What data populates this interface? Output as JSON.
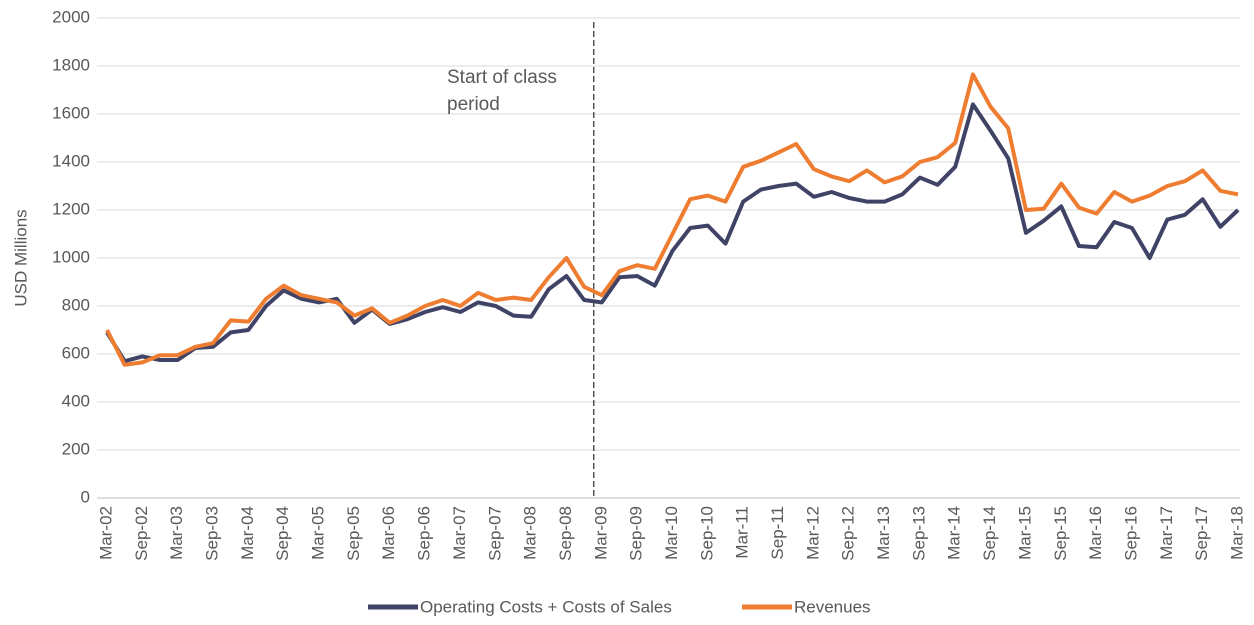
{
  "chart_data": {
    "type": "line",
    "y_label": "USD Millions",
    "annotation": [
      "Start of class",
      "period"
    ],
    "annotation_at": "Mar-09",
    "categories": [
      "Mar-02",
      null,
      "Sep-02",
      null,
      "Mar-03",
      null,
      "Sep-03",
      null,
      "Mar-04",
      null,
      "Sep-04",
      null,
      "Mar-05",
      null,
      "Sep-05",
      null,
      "Mar-06",
      null,
      "Sep-06",
      null,
      "Mar-07",
      null,
      "Sep-07",
      null,
      "Mar-08",
      null,
      "Sep-08",
      null,
      "Mar-09",
      null,
      "Sep-09",
      null,
      "Mar-10",
      null,
      "Sep-10",
      null,
      "Mar-11",
      null,
      "Sep-11",
      null,
      "Mar-12",
      null,
      "Sep-12",
      null,
      "Mar-13",
      null,
      "Sep-13",
      null,
      "Mar-14",
      null,
      "Sep-14",
      null,
      "Mar-15",
      null,
      "Sep-15",
      null,
      "Mar-16",
      null,
      "Sep-16",
      null,
      "Mar-17",
      null,
      "Sep-17",
      null,
      "Mar-18"
    ],
    "series": [
      {
        "name": "Operating Costs + Costs of Sales",
        "color": "#3f4366",
        "values": [
          690,
          570,
          590,
          575,
          575,
          625,
          630,
          690,
          700,
          800,
          865,
          830,
          815,
          830,
          730,
          785,
          725,
          745,
          775,
          795,
          775,
          815,
          800,
          760,
          755,
          870,
          925,
          825,
          815,
          920,
          925,
          885,
          1030,
          1125,
          1135,
          1060,
          1235,
          1285,
          1300,
          1310,
          1255,
          1275,
          1250,
          1235,
          1235,
          1265,
          1335,
          1305,
          1380,
          1640,
          1530,
          1415,
          1105,
          1155,
          1215,
          1050,
          1045,
          1150,
          1125,
          1000,
          1160,
          1180,
          1245,
          1130,
          1200
        ]
      },
      {
        "name": "Revenues",
        "color": "#ee7d31",
        "values": [
          700,
          555,
          565,
          595,
          595,
          630,
          645,
          740,
          735,
          830,
          885,
          845,
          830,
          815,
          760,
          790,
          730,
          760,
          800,
          825,
          800,
          855,
          825,
          835,
          825,
          920,
          1000,
          880,
          845,
          945,
          970,
          955,
          1100,
          1245,
          1260,
          1235,
          1380,
          1405,
          1440,
          1475,
          1370,
          1340,
          1320,
          1365,
          1315,
          1340,
          1400,
          1420,
          1480,
          1765,
          1630,
          1540,
          1200,
          1205,
          1310,
          1210,
          1185,
          1275,
          1235,
          1260,
          1300,
          1320,
          1365,
          1280,
          1265
        ]
      }
    ],
    "ylim": [
      0,
      2000
    ],
    "yticks": [
      0,
      200,
      400,
      600,
      800,
      1000,
      1200,
      1400,
      1600,
      1800,
      2000
    ],
    "grid": true,
    "legend": "bottom"
  }
}
